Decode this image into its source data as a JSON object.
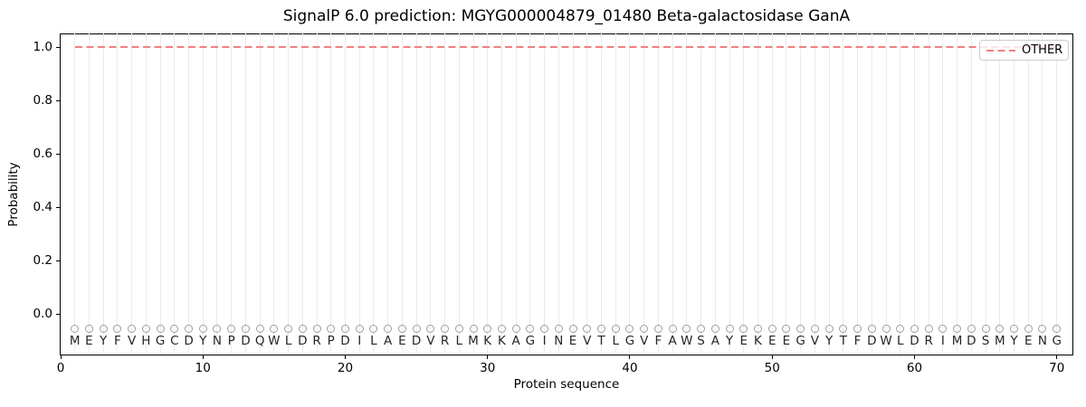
{
  "chart_data": {
    "type": "line",
    "title": "SignalP 6.0 prediction: MGYG000004879_01480 Beta-galactosidase GanA",
    "xlabel": "Protein sequence",
    "ylabel": "Probability",
    "xlim": [
      0,
      71.1
    ],
    "ylim": [
      -0.152,
      1.051
    ],
    "xticks": [
      "0",
      "10",
      "20",
      "30",
      "40",
      "50",
      "60",
      "70"
    ],
    "yticks": [
      "0.0",
      "0.2",
      "0.4",
      "0.6",
      "0.8",
      "1.0"
    ],
    "grid": {
      "vertical_per_residue": true,
      "color": "#ebebeb"
    },
    "sequence": "MEYFVHGCDYNPDQWLDRPDILAEDVRLMKKAGINEVTLGVFAWSAYEKEEGVYTFDWLDRIMDSMYENG",
    "series": [
      {
        "name": "OTHER",
        "style": "dashed",
        "color": "#f08080",
        "x_start": 1,
        "x_end": 70,
        "constant_y": 1.0
      }
    ],
    "markers": {
      "glyph": "circle-outline",
      "color": "#9e9e9e",
      "y": -0.055
    },
    "residue_letter_y": -0.102,
    "legend": {
      "position": "upper-right",
      "entries": [
        {
          "label": "OTHER",
          "color": "#f08080",
          "style": "dashed"
        }
      ]
    }
  }
}
